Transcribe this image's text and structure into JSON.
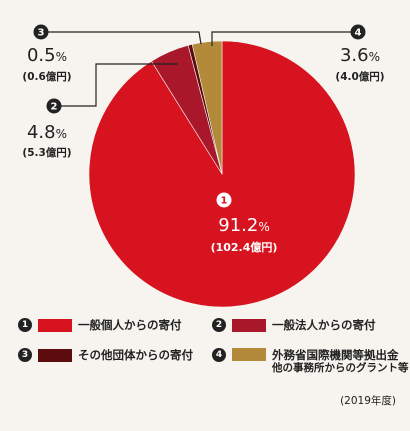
{
  "chart_data": {
    "type": "pie",
    "slices": [
      {
        "id": "1",
        "pct": "91.2",
        "amount": "(102.4億円)",
        "color": "#d6131f",
        "name": "一般個人からの寄付"
      },
      {
        "id": "2",
        "pct": "4.8",
        "amount": "(5.3億円)",
        "color": "#a8172a",
        "name": "一般法人からの寄付"
      },
      {
        "id": "3",
        "pct": "0.5",
        "amount": "(0.6億円)",
        "color": "#5c0b0f",
        "name": "その他団体からの寄付"
      },
      {
        "id": "4",
        "pct": "3.6",
        "amount": "(4.0億円)",
        "color": "#b38a3a",
        "name": "外務省国際機関等拠出金",
        "name_line2": "他の事務所からのグラント等"
      }
    ],
    "values": [
      91.2,
      4.8,
      0.5,
      3.6
    ],
    "unit": "%"
  },
  "footer": {
    "year": "(2019年度)"
  }
}
